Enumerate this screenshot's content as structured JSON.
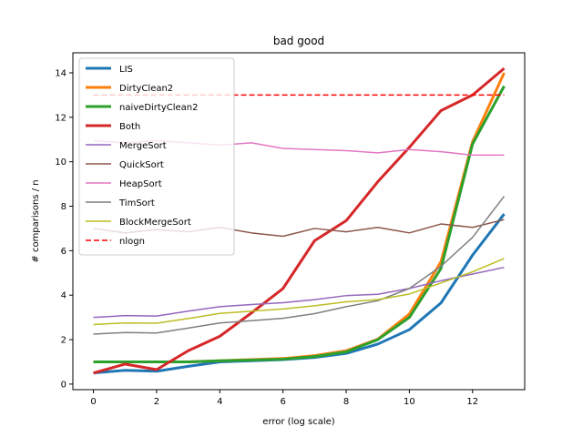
{
  "chart_data": {
    "type": "line",
    "title": "bad good",
    "xlabel": "error (log scale)",
    "ylabel": "# comparisons / n",
    "xlim": [
      -0.65,
      13.65
    ],
    "ylim": [
      -0.25,
      14.9
    ],
    "xticks": [
      0,
      2,
      4,
      6,
      8,
      10,
      12
    ],
    "yticks": [
      0,
      2,
      4,
      6,
      8,
      10,
      12,
      14
    ],
    "grid": false,
    "legend_position": "upper left",
    "x": [
      0,
      1,
      2,
      3,
      4,
      5,
      6,
      7,
      8,
      9,
      10,
      11,
      12,
      13
    ],
    "series": [
      {
        "name": "LIS",
        "color": "#1f77b4",
        "width": 3,
        "dash": "",
        "values": [
          0.5,
          0.62,
          0.58,
          0.8,
          1.0,
          1.05,
          1.1,
          1.2,
          1.38,
          1.8,
          2.45,
          3.65,
          5.8,
          7.65
        ]
      },
      {
        "name": "DirtyClean2",
        "color": "#ff7f0e",
        "width": 3,
        "dash": "",
        "values": [
          1.0,
          1.0,
          1.0,
          1.0,
          1.05,
          1.1,
          1.15,
          1.28,
          1.5,
          2.02,
          3.15,
          5.5,
          10.9,
          14.0
        ]
      },
      {
        "name": "naiveDirtyClean2",
        "color": "#2ca02c",
        "width": 3,
        "dash": "",
        "values": [
          1.0,
          1.0,
          1.0,
          1.0,
          1.05,
          1.08,
          1.12,
          1.24,
          1.45,
          2.0,
          3.0,
          5.2,
          10.8,
          13.4
        ]
      },
      {
        "name": "Both",
        "color": "#d62728",
        "width": 3,
        "dash": "",
        "values": [
          0.5,
          0.9,
          0.65,
          1.5,
          2.15,
          3.2,
          4.3,
          6.45,
          7.35,
          9.1,
          10.65,
          12.3,
          13.0,
          14.2
        ]
      },
      {
        "name": "MergeSort",
        "color": "#9467bd",
        "width": 1.5,
        "dash": "",
        "values": [
          3.0,
          3.08,
          3.06,
          3.28,
          3.48,
          3.58,
          3.66,
          3.8,
          3.98,
          4.04,
          4.3,
          4.65,
          4.95,
          5.25
        ]
      },
      {
        "name": "QuickSort",
        "color": "#8c564b",
        "width": 1.5,
        "dash": "",
        "values": [
          7.0,
          6.8,
          6.95,
          6.85,
          7.05,
          6.8,
          6.65,
          7.0,
          6.85,
          7.05,
          6.8,
          7.2,
          7.05,
          7.4
        ]
      },
      {
        "name": "HeapSort",
        "color": "#e377c2",
        "width": 1.5,
        "dash": "",
        "values": [
          10.95,
          10.85,
          10.95,
          10.85,
          10.75,
          10.85,
          10.6,
          10.55,
          10.5,
          10.4,
          10.55,
          10.45,
          10.3,
          10.3
        ]
      },
      {
        "name": "TimSort",
        "color": "#7f7f7f",
        "width": 1.5,
        "dash": "",
        "values": [
          2.25,
          2.32,
          2.3,
          2.52,
          2.75,
          2.85,
          2.96,
          3.17,
          3.48,
          3.75,
          4.3,
          5.3,
          6.6,
          8.45
        ]
      },
      {
        "name": "BlockMergeSort",
        "color": "#bcbd22",
        "width": 1.5,
        "dash": "",
        "values": [
          2.68,
          2.75,
          2.74,
          2.95,
          3.18,
          3.28,
          3.38,
          3.52,
          3.7,
          3.8,
          4.05,
          4.55,
          5.05,
          5.65
        ]
      },
      {
        "name": "nlogn",
        "color": "#ff0000",
        "width": 1.5,
        "dash": "6,3",
        "values": [
          13.0,
          13.0,
          13.0,
          13.0,
          13.0,
          13.0,
          13.0,
          13.0,
          13.0,
          13.0,
          13.0,
          13.0,
          13.0,
          13.0
        ]
      }
    ]
  }
}
